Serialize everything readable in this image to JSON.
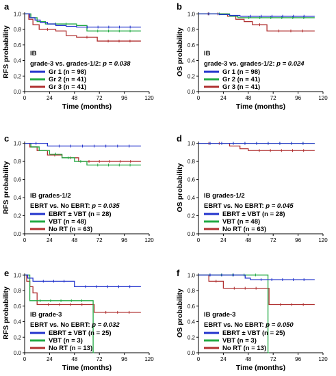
{
  "chart_data": [
    {
      "panel": "a",
      "type": "line",
      "xlabel": "Time (months)",
      "ylabel": "RFS probability",
      "xticks": [
        0,
        24,
        48,
        72,
        96,
        120
      ],
      "yticks": [
        "0.0",
        "0.2",
        "0.4",
        "0.6",
        "0.8",
        "1.0"
      ],
      "xlim": [
        0,
        120
      ],
      "ylim": [
        0,
        1.02
      ],
      "annotation": {
        "line1": "IB",
        "line2": "grade-3 vs. grades-1/2: ",
        "pvalue": "p = 0.038"
      },
      "series": [
        {
          "name": "Gr 1 (n = 98)",
          "color": "#2233cc",
          "steps": [
            [
              0,
              1
            ],
            [
              5,
              0.95
            ],
            [
              10,
              0.92
            ],
            [
              15,
              0.89
            ],
            [
              22,
              0.87
            ],
            [
              30,
              0.85
            ],
            [
              40,
              0.84
            ],
            [
              50,
              0.83
            ],
            [
              112,
              0.83
            ]
          ]
        },
        {
          "name": "Gr 2 (n = 41)",
          "color": "#22aa44",
          "steps": [
            [
              0,
              1
            ],
            [
              6,
              0.95
            ],
            [
              12,
              0.9
            ],
            [
              20,
              0.87
            ],
            [
              50,
              0.85
            ],
            [
              60,
              0.78
            ],
            [
              112,
              0.78
            ]
          ]
        },
        {
          "name": "Gr 3 (n = 41)",
          "color": "#b03030",
          "steps": [
            [
              0,
              1
            ],
            [
              4,
              0.93
            ],
            [
              8,
              0.86
            ],
            [
              14,
              0.8
            ],
            [
              30,
              0.78
            ],
            [
              40,
              0.72
            ],
            [
              50,
              0.7
            ],
            [
              70,
              0.65
            ],
            [
              112,
              0.65
            ]
          ]
        }
      ]
    },
    {
      "panel": "b",
      "type": "line",
      "xlabel": "Time (months)",
      "ylabel": "OS probability",
      "xticks": [
        0,
        24,
        48,
        72,
        96,
        120
      ],
      "yticks": [
        "0.0",
        "0.2",
        "0.4",
        "0.6",
        "0.8",
        "1.0"
      ],
      "xlim": [
        0,
        120
      ],
      "ylim": [
        0,
        1.02
      ],
      "annotation": {
        "line1": "IB",
        "line2": "grade-3 vs. grades-1/2: ",
        "pvalue": "p = 0.024"
      },
      "series": [
        {
          "name": "Gr 1 (n = 98)",
          "color": "#2233cc",
          "steps": [
            [
              0,
              1
            ],
            [
              20,
              0.99
            ],
            [
              30,
              0.98
            ],
            [
              40,
              0.97
            ],
            [
              112,
              0.97
            ]
          ]
        },
        {
          "name": "Gr 2 (n = 41)",
          "color": "#22aa44",
          "steps": [
            [
              0,
              1
            ],
            [
              30,
              0.97
            ],
            [
              38,
              0.95
            ],
            [
              112,
              0.95
            ]
          ]
        },
        {
          "name": "Gr 3 (n = 41)",
          "color": "#b03030",
          "steps": [
            [
              0,
              1
            ],
            [
              28,
              0.97
            ],
            [
              36,
              0.93
            ],
            [
              44,
              0.9
            ],
            [
              52,
              0.86
            ],
            [
              66,
              0.78
            ],
            [
              112,
              0.78
            ]
          ]
        }
      ]
    },
    {
      "panel": "c",
      "type": "line",
      "xlabel": "",
      "ylabel": "RFS probability",
      "xticks": [
        0,
        24,
        48,
        72,
        96,
        120
      ],
      "yticks": [
        "0.0",
        "0.2",
        "0.4",
        "0.6",
        "0.8",
        "1.0"
      ],
      "xlim": [
        0,
        120
      ],
      "ylim": [
        0,
        1.02
      ],
      "annotation": {
        "line1": "IB grades-1/2",
        "line2": "EBRT vs. No EBRT: ",
        "pvalue": "p = 0.035"
      },
      "series": [
        {
          "name": "EBRT ± VBT (n = 28)",
          "color": "#2233cc",
          "steps": [
            [
              0,
              1
            ],
            [
              22,
              0.97
            ],
            [
              112,
              0.97
            ]
          ]
        },
        {
          "name": "VBT (n = 48)",
          "color": "#22aa44",
          "steps": [
            [
              0,
              1
            ],
            [
              6,
              0.96
            ],
            [
              14,
              0.92
            ],
            [
              24,
              0.88
            ],
            [
              36,
              0.84
            ],
            [
              48,
              0.8
            ],
            [
              60,
              0.76
            ],
            [
              112,
              0.76
            ]
          ]
        },
        {
          "name": "No RT (n = 63)",
          "color": "#b03030",
          "steps": [
            [
              0,
              1
            ],
            [
              5,
              0.96
            ],
            [
              12,
              0.92
            ],
            [
              22,
              0.87
            ],
            [
              36,
              0.84
            ],
            [
              52,
              0.8
            ],
            [
              112,
              0.8
            ]
          ]
        }
      ]
    },
    {
      "panel": "d",
      "type": "line",
      "xlabel": "",
      "ylabel": "OS probability",
      "xticks": [
        0,
        24,
        48,
        72,
        96,
        120
      ],
      "yticks": [
        "0.0",
        "0.2",
        "0.4",
        "0.6",
        "0.8",
        "1.0"
      ],
      "xlim": [
        0,
        120
      ],
      "ylim": [
        0,
        1.02
      ],
      "annotation": {
        "line1": "IB grades-1/2",
        "line2": "EBRT vs. No EBRT: ",
        "pvalue": "p = 0.045"
      },
      "series": [
        {
          "name": "EBRT ± VBT (n = 28)",
          "color": "#2233cc",
          "steps": [
            [
              0,
              1
            ],
            [
              112,
              1
            ]
          ]
        },
        {
          "name": "VBT (n = 48)",
          "color": "#22aa44",
          "steps": [
            [
              0,
              1
            ],
            [
              112,
              1
            ]
          ]
        },
        {
          "name": "No RT (n = 63)",
          "color": "#b03030",
          "steps": [
            [
              0,
              1
            ],
            [
              30,
              0.97
            ],
            [
              40,
              0.94
            ],
            [
              48,
              0.92
            ],
            [
              112,
              0.92
            ]
          ]
        }
      ]
    },
    {
      "panel": "e",
      "type": "line",
      "xlabel": "Time (months)",
      "ylabel": "RFS probability",
      "xticks": [
        0,
        24,
        48,
        72,
        96,
        120
      ],
      "yticks": [
        "0.0",
        "0.2",
        "0.4",
        "0.6",
        "0.8",
        "1.0"
      ],
      "xlim": [
        0,
        120
      ],
      "ylim": [
        0,
        1.02
      ],
      "annotation": {
        "line1": "IB grade-3",
        "line2": "EBRT vs. No EBRT: ",
        "pvalue": "p = 0.032"
      },
      "series": [
        {
          "name": "EBRT ± VBT (n = 25)",
          "color": "#2233cc",
          "steps": [
            [
              0,
              1
            ],
            [
              3,
              0.96
            ],
            [
              8,
              0.92
            ],
            [
              48,
              0.85
            ],
            [
              112,
              0.85
            ]
          ]
        },
        {
          "name": "VBT (n = 3)",
          "color": "#22aa44",
          "steps": [
            [
              0,
              1
            ],
            [
              5,
              0.67
            ],
            [
              65,
              0.67
            ],
            [
              66,
              0
            ],
            [
              67,
              0
            ]
          ]
        },
        {
          "name": "No RT (n = 13)",
          "color": "#b03030",
          "steps": [
            [
              0,
              1
            ],
            [
              2,
              0.92
            ],
            [
              5,
              0.85
            ],
            [
              8,
              0.77
            ],
            [
              12,
              0.62
            ],
            [
              66,
              0.62
            ],
            [
              67,
              0.52
            ],
            [
              112,
              0.52
            ]
          ]
        }
      ]
    },
    {
      "panel": "f",
      "type": "line",
      "xlabel": "Time (months)",
      "ylabel": "OS probability",
      "xticks": [
        0,
        24,
        48,
        72,
        96,
        120
      ],
      "yticks": [
        "0.0",
        "0.2",
        "0.4",
        "0.6",
        "0.8",
        "1.0"
      ],
      "xlim": [
        0,
        120
      ],
      "ylim": [
        0,
        1.02
      ],
      "annotation": {
        "line1": "IB grade-3",
        "line2": "EBRT vs. No EBRT: ",
        "pvalue": "p = 0.050"
      },
      "series": [
        {
          "name": "EBRT ± VBT (n = 25)",
          "color": "#2233cc",
          "steps": [
            [
              0,
              1
            ],
            [
              45,
              0.96
            ],
            [
              50,
              0.94
            ],
            [
              112,
              0.94
            ]
          ]
        },
        {
          "name": "VBT (n = 3)",
          "color": "#22aa44",
          "steps": [
            [
              0,
              1
            ],
            [
              66,
              1
            ],
            [
              67,
              0
            ],
            [
              68,
              0
            ]
          ]
        },
        {
          "name": "No RT (n = 13)",
          "color": "#b03030",
          "steps": [
            [
              0,
              1
            ],
            [
              10,
              0.92
            ],
            [
              24,
              0.83
            ],
            [
              66,
              0.83
            ],
            [
              68,
              0.62
            ],
            [
              112,
              0.62
            ]
          ]
        }
      ]
    }
  ]
}
